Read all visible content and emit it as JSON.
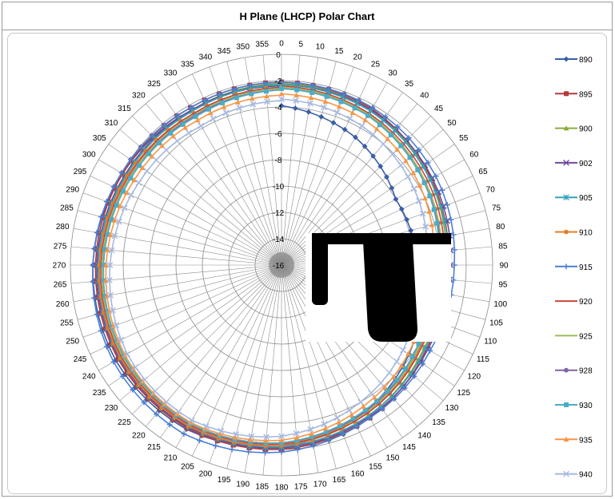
{
  "chart_data": {
    "type": "polar-line",
    "title": "H Plane (LHCP) Polar Chart",
    "angular_unit": "degrees",
    "angular_ticks": [
      0,
      5,
      10,
      15,
      20,
      25,
      30,
      35,
      40,
      45,
      50,
      55,
      60,
      65,
      70,
      75,
      80,
      85,
      90,
      95,
      100,
      105,
      110,
      115,
      120,
      125,
      130,
      135,
      140,
      145,
      150,
      155,
      160,
      165,
      170,
      175,
      180,
      185,
      190,
      195,
      200,
      205,
      210,
      215,
      220,
      225,
      230,
      235,
      240,
      245,
      250,
      255,
      260,
      265,
      270,
      275,
      280,
      285,
      290,
      295,
      300,
      305,
      310,
      315,
      320,
      325,
      330,
      335,
      340,
      345,
      350,
      355
    ],
    "radial_ticks": [
      "0",
      "-2",
      "-4",
      "-6",
      "-8",
      "-10",
      "-12",
      "-14",
      "-16"
    ],
    "rlim": [
      -16,
      0
    ],
    "grid": true,
    "legend_position": "right",
    "series": [
      {
        "name": "890",
        "color": "#3a5ea8",
        "marker": "diamond",
        "values": [
          -3.9,
          -4.8,
          -6,
          -5.7,
          -4.4,
          -3.2,
          -2.2,
          -1.6,
          -1.5,
          -1.7,
          -2.1,
          -2.4,
          -2.4
        ]
      },
      {
        "name": "895",
        "color": "#b33a3a",
        "marker": "square",
        "values": [
          -2.1,
          -2.3,
          -2.9,
          -3.4,
          -3.3,
          -2.6,
          -2.0,
          -1.7,
          -1.7,
          -1.9,
          -2.1,
          -2.2,
          -2.1
        ]
      },
      {
        "name": "900",
        "color": "#8aab3a",
        "marker": "triangle",
        "values": [
          -2.2,
          -2.4,
          -3.0,
          -3.6,
          -3.5,
          -2.8,
          -2.1,
          -1.8,
          -1.8,
          -2.0,
          -2.3,
          -2.4,
          -2.2
        ]
      },
      {
        "name": "902",
        "color": "#6e4b9a",
        "marker": "x",
        "values": [
          -2.3,
          -2.4,
          -2.8,
          -3.2,
          -3.2,
          -2.7,
          -2.1,
          -1.8,
          -1.8,
          -2.0,
          -2.3,
          -2.4,
          -2.3
        ]
      },
      {
        "name": "905",
        "color": "#35a3b6",
        "marker": "star",
        "values": [
          -2.3,
          -2.5,
          -3.0,
          -3.4,
          -3.4,
          -2.8,
          -2.2,
          -1.9,
          -1.9,
          -2.1,
          -2.4,
          -2.5,
          -2.3
        ]
      },
      {
        "name": "910",
        "color": "#e07d2a",
        "marker": "circle",
        "values": [
          -2.5,
          -2.8,
          -3.4,
          -3.9,
          -3.8,
          -3.0,
          -2.3,
          -1.9,
          -1.9,
          -2.2,
          -2.5,
          -2.7,
          -2.5
        ]
      },
      {
        "name": "915",
        "color": "#4a7fd4",
        "marker": "plus",
        "values": [
          -2.1,
          -2.2,
          -2.5,
          -2.9,
          -3.0,
          -2.6,
          -1.8,
          -1.2,
          -1.3,
          -1.7,
          -2.0,
          -2.2,
          -2.1
        ]
      },
      {
        "name": "920",
        "color": "#c9443e",
        "marker": "none",
        "values": [
          -2.4,
          -2.7,
          -3.2,
          -3.7,
          -3.7,
          -3.0,
          -2.4,
          -2.0,
          -2.0,
          -2.3,
          -2.6,
          -2.7,
          -2.5
        ]
      },
      {
        "name": "925",
        "color": "#9bbb59",
        "marker": "none",
        "values": [
          -2.5,
          -2.8,
          -3.4,
          -3.9,
          -3.9,
          -3.1,
          -2.5,
          -2.1,
          -2.1,
          -2.4,
          -2.7,
          -2.8,
          -2.6
        ]
      },
      {
        "name": "928",
        "color": "#8064a2",
        "marker": "circle",
        "values": [
          -2.6,
          -2.9,
          -3.5,
          -4.0,
          -4.0,
          -3.2,
          -2.5,
          -2.1,
          -2.2,
          -2.5,
          -2.8,
          -2.9,
          -2.7
        ]
      },
      {
        "name": "930",
        "color": "#4bacc6",
        "marker": "square",
        "values": [
          -2.6,
          -2.9,
          -3.5,
          -4.1,
          -4.0,
          -3.3,
          -2.5,
          -2.1,
          -2.2,
          -2.5,
          -2.8,
          -3.0,
          -2.7
        ]
      },
      {
        "name": "935",
        "color": "#f79646",
        "marker": "triangle",
        "values": [
          -3.0,
          -3.3,
          -3.9,
          -4.5,
          -4.4,
          -3.6,
          -2.7,
          -2.2,
          -2.3,
          -2.7,
          -3.1,
          -3.3,
          -3.1
        ]
      },
      {
        "name": "940",
        "color": "#a5b8e0",
        "marker": "x",
        "values": [
          -3.4,
          -3.8,
          -4.4,
          -5.0,
          -4.9,
          -4.0,
          -3.0,
          -2.4,
          -2.5,
          -3.0,
          -3.5,
          -3.8,
          -3.5
        ]
      }
    ],
    "value_angles": [
      0,
      30,
      60,
      90,
      120,
      150,
      180,
      210,
      240,
      270,
      300,
      330,
      360
    ]
  }
}
